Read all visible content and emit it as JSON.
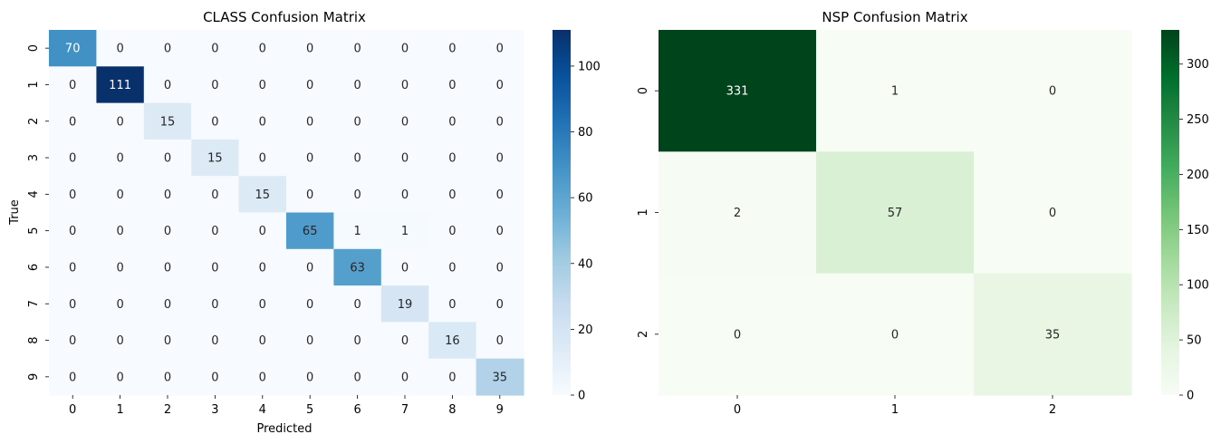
{
  "chart_data": [
    {
      "type": "heatmap",
      "title": "CLASS Confusion Matrix",
      "xlabel": "Predicted",
      "ylabel": "True",
      "x_tick_labels": [
        "0",
        "1",
        "2",
        "3",
        "4",
        "5",
        "6",
        "7",
        "8",
        "9"
      ],
      "y_tick_labels": [
        "0",
        "1",
        "2",
        "3",
        "4",
        "5",
        "6",
        "7",
        "8",
        "9"
      ],
      "values": [
        [
          70,
          0,
          0,
          0,
          0,
          0,
          0,
          0,
          0,
          0
        ],
        [
          0,
          111,
          0,
          0,
          0,
          0,
          0,
          0,
          0,
          0
        ],
        [
          0,
          0,
          15,
          0,
          0,
          0,
          0,
          0,
          0,
          0
        ],
        [
          0,
          0,
          0,
          15,
          0,
          0,
          0,
          0,
          0,
          0
        ],
        [
          0,
          0,
          0,
          0,
          15,
          0,
          0,
          0,
          0,
          0
        ],
        [
          0,
          0,
          0,
          0,
          0,
          65,
          1,
          1,
          0,
          0
        ],
        [
          0,
          0,
          0,
          0,
          0,
          0,
          63,
          0,
          0,
          0
        ],
        [
          0,
          0,
          0,
          0,
          0,
          0,
          0,
          19,
          0,
          0
        ],
        [
          0,
          0,
          0,
          0,
          0,
          0,
          0,
          0,
          16,
          0
        ],
        [
          0,
          0,
          0,
          0,
          0,
          0,
          0,
          0,
          0,
          35
        ]
      ],
      "colormap": "Blues",
      "colorbar_range": [
        0,
        111
      ],
      "colorbar_ticks": [
        0,
        20,
        40,
        60,
        80,
        100
      ]
    },
    {
      "type": "heatmap",
      "title": "NSP Confusion Matrix",
      "xlabel": "",
      "ylabel": "",
      "x_tick_labels": [
        "0",
        "1",
        "2"
      ],
      "y_tick_labels": [
        "0",
        "1",
        "2"
      ],
      "values": [
        [
          331,
          1,
          0
        ],
        [
          2,
          57,
          0
        ],
        [
          0,
          0,
          35
        ]
      ],
      "colormap": "Greens",
      "colorbar_range": [
        0,
        331
      ],
      "colorbar_ticks": [
        0,
        50,
        100,
        150,
        200,
        250,
        300
      ]
    }
  ],
  "colormaps": {
    "Blues": [
      "#f7fbff",
      "#deebf7",
      "#c6dbef",
      "#9ecae1",
      "#6baed6",
      "#4292c6",
      "#2171b5",
      "#08519c",
      "#08306b"
    ],
    "Greens": [
      "#f7fcf5",
      "#e5f5e0",
      "#c7e9c0",
      "#a1d99b",
      "#74c476",
      "#41ab5d",
      "#238b45",
      "#006d2c",
      "#00441b"
    ]
  }
}
